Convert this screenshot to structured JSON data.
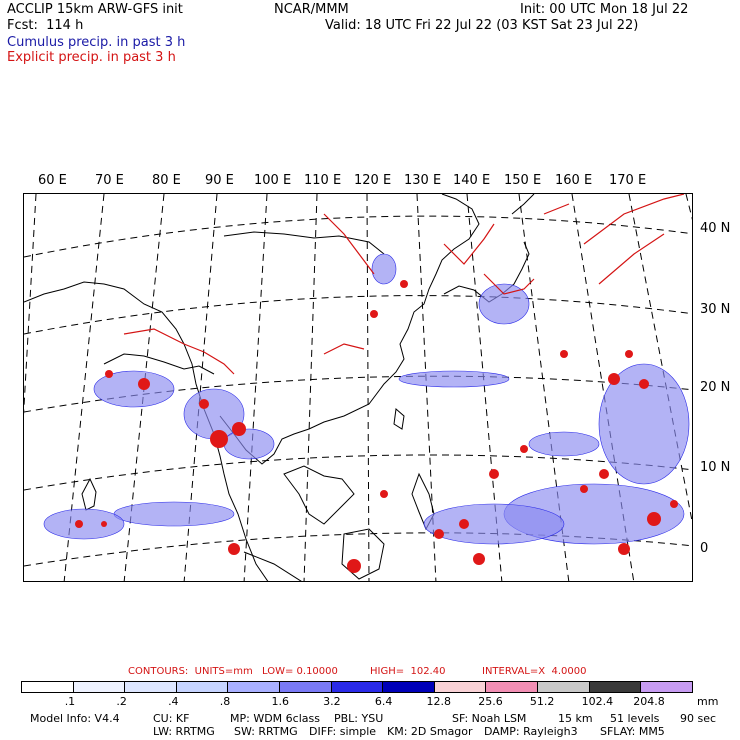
{
  "header": {
    "title_left": "ACCLIP 15km ARW-GFS init",
    "title_center": "NCAR/MMM",
    "init": "Init: 00 UTC Mon 18 Jul 22",
    "fcst": "Fcst:  114 h",
    "valid": "Valid: 18 UTC Fri 22 Jul 22 (03 KST Sat 23 Jul 22)",
    "legend_cumulus": "Cumulus precip. in past 3 h",
    "legend_explicit": "Explicit precip. in past 3 h"
  },
  "colors": {
    "cumulus": "#1a1aa6",
    "explicit": "#d41414",
    "coast": "#000000"
  },
  "map": {
    "longitude_labels": [
      "60 E",
      "70 E",
      "80 E",
      "90 E",
      "100 E",
      "110 E",
      "120 E",
      "130 E",
      "140 E",
      "150 E",
      "160 E",
      "170 E"
    ],
    "latitude_labels": [
      "40 N",
      "30 N",
      "20 N",
      "10 N",
      "0"
    ]
  },
  "contours": {
    "units_label": "CONTOURS:  UNITS=mm",
    "low": "LOW= 0.10000",
    "high": "HIGH=  102.40",
    "interval": "INTERVAL=X  4.0000"
  },
  "colorbar": {
    "labels": [
      ".1",
      ".2",
      ".4",
      ".8",
      "1.6",
      "3.2",
      "6.4",
      "12.8",
      "25.6",
      "51.2",
      "102.4",
      "204.8"
    ],
    "units": "mm",
    "colors": [
      "#ffffff",
      "#ffffff",
      "#eef2ff",
      "#dde6ff",
      "#c6d4ff",
      "#a9b0ff",
      "#7a7af5",
      "#2a2ae8",
      "#0000b8",
      "#f9d2d6",
      "#f28fb4",
      "#c8c8c8",
      "#3a3a3a",
      "#c79cf2"
    ]
  },
  "model_info": {
    "line1": [
      "Model Info: V4.4",
      "CU: KF",
      "MP: WDM 6class",
      "PBL: YSU",
      "SF: Noah LSM",
      "15 km",
      "51 levels",
      "90 sec"
    ],
    "line2": [
      "LW: RRTMG",
      "SW: RRTMG",
      "DIFF: simple",
      "KM: 2D Smagor",
      "DAMP: Rayleigh3",
      "SFLAY: MM5"
    ]
  }
}
